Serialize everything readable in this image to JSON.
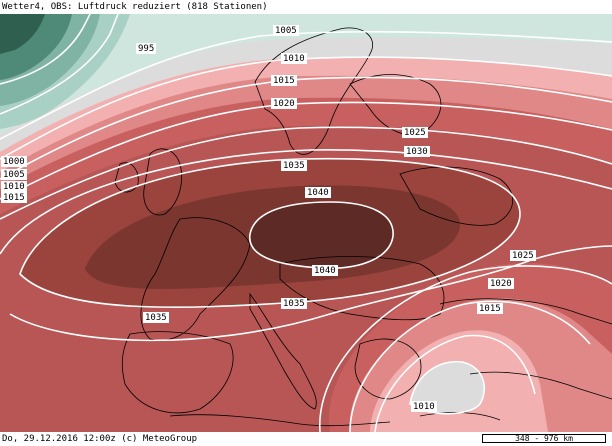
{
  "header": {
    "title": "Wetter4, OBS: Luftdruck reduziert (818 Stationen)"
  },
  "footer": {
    "datetime": "Do, 29.12.2016 12:00z (c) MeteoGroup",
    "scale": "348 - 976 km"
  },
  "isobars": [
    {
      "value": "995"
    },
    {
      "value": "1000"
    },
    {
      "value": "1005"
    },
    {
      "value": "1010"
    },
    {
      "value": "1015"
    },
    {
      "value": "1020"
    },
    {
      "value": "1025"
    },
    {
      "value": "1030"
    },
    {
      "value": "1035"
    },
    {
      "value": "1040"
    }
  ],
  "labels": {
    "l995": "995",
    "l1005": "1005",
    "l1010": "1010",
    "l1015": "1015",
    "l1020": "1020",
    "l1025": "1025",
    "l1030": "1030",
    "l1035a": "1035",
    "l1040a": "1040",
    "l1040b": "1040",
    "l1035b": "1035",
    "l1035c": "1035",
    "w1000": "1000",
    "w1005": "1005",
    "w1010": "1010",
    "w1015": "1015",
    "e1025": "1025",
    "e1020": "1020",
    "e1015": "1015",
    "e1010": "1010"
  },
  "colors": {
    "low_dark": "#2f5f4f",
    "low_mid": "#7fb3a3",
    "low_light": "#cfe6df",
    "neutral": "#dcdcdc",
    "pink_light": "#f6c0c0",
    "pink": "#e89090",
    "red": "#c86060",
    "red_mid": "#b85555",
    "red_dark": "#8a3b35",
    "high": "#5e2a25",
    "isobar": "#ffffff",
    "coast": "#000000"
  }
}
